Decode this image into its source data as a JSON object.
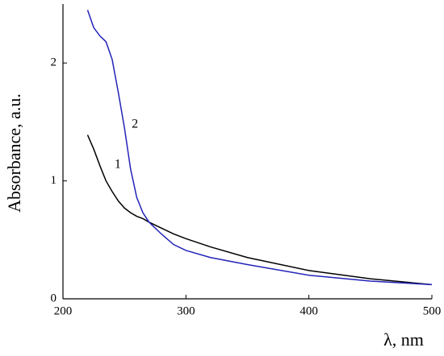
{
  "chart_data": {
    "type": "line",
    "xlabel": "λ, nm",
    "ylabel": "Absorbance, a.u.",
    "x": [
      220,
      225,
      230,
      235,
      240,
      245,
      250,
      255,
      260,
      265,
      270,
      280,
      290,
      300,
      320,
      350,
      400,
      450,
      500
    ],
    "series": [
      {
        "name": "1",
        "color": "#000000",
        "values": [
          1.39,
          1.27,
          1.13,
          1.0,
          0.91,
          0.83,
          0.77,
          0.73,
          0.7,
          0.68,
          0.65,
          0.6,
          0.55,
          0.51,
          0.44,
          0.35,
          0.24,
          0.17,
          0.12
        ]
      },
      {
        "name": "2",
        "color": "#2323b8",
        "values": [
          2.45,
          2.3,
          2.23,
          2.18,
          2.03,
          1.75,
          1.45,
          1.1,
          0.86,
          0.73,
          0.65,
          0.55,
          0.46,
          0.41,
          0.35,
          0.29,
          0.2,
          0.15,
          0.12
        ]
      }
    ],
    "xlim": [
      200,
      500
    ],
    "ylim": [
      0,
      2.5
    ],
    "xticks": [
      200,
      300,
      400,
      500
    ],
    "yticks": [
      0,
      1,
      2
    ],
    "grid": false
  }
}
